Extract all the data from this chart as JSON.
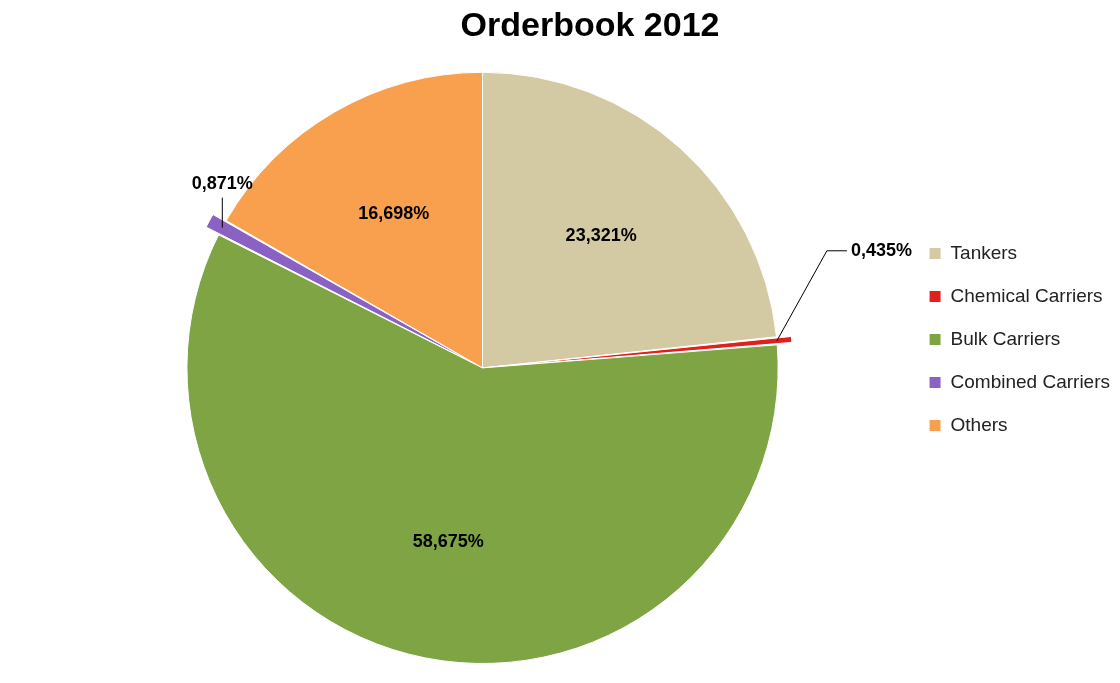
{
  "chart_data": {
    "type": "pie",
    "title": "Orderbook 2012",
    "categories": [
      "Tankers",
      "Chemical Carriers",
      "Bulk Carriers",
      "Combined Carriers",
      "Others"
    ],
    "values": [
      23.321,
      0.435,
      58.675,
      0.871,
      16.698
    ],
    "colors": [
      "#d3c9a2",
      "#e0201c",
      "#7ea443",
      "#8a62c4",
      "#f9a04f"
    ],
    "value_labels": [
      "23,321%",
      "0,435%",
      "58,675%",
      "0,871%",
      "16,698%"
    ],
    "legend": "right"
  }
}
